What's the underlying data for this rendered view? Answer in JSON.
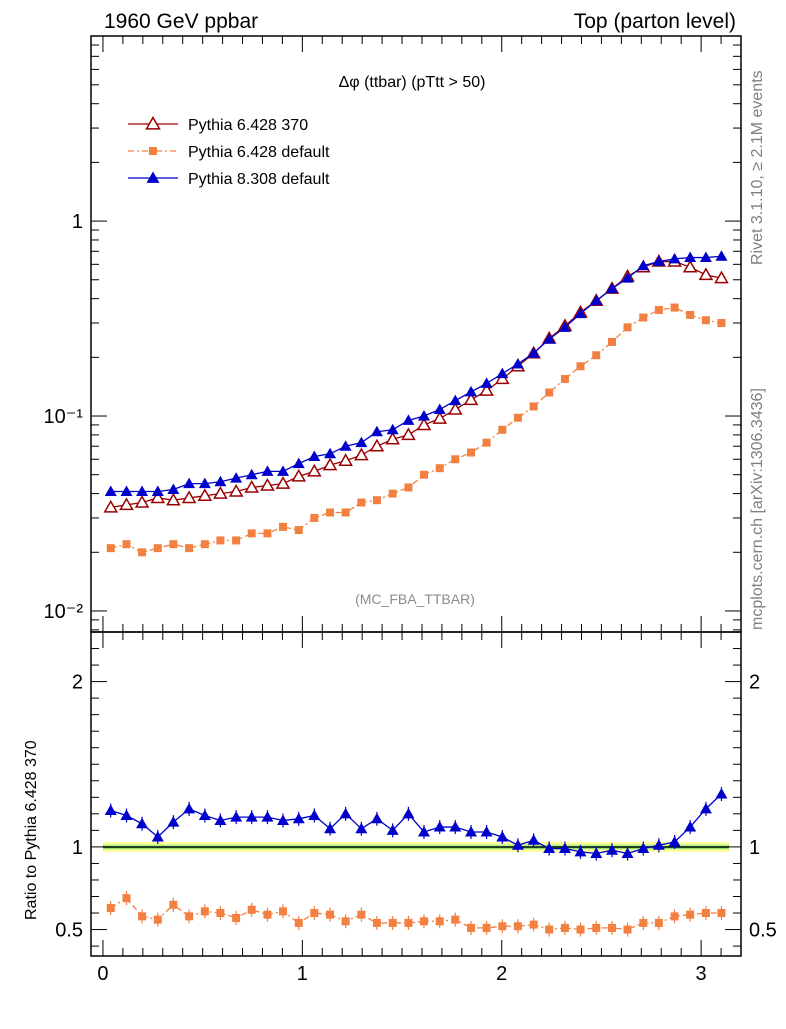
{
  "header": {
    "left": "1960 GeV ppbar",
    "right": "Top (parton level)"
  },
  "side": {
    "rivet": "Rivet 3.1.10, ≥ 2.1M events",
    "mcplots": "mcplots.cern.ch [arXiv:1306.3436]"
  },
  "chart_data": [
    {
      "type": "line",
      "title": "Δφ (ttbar) (pTtt > 50)",
      "analysis": "(MC_FBA_TTBAR)",
      "yscale": "log",
      "xlim": [
        -0.06,
        3.2
      ],
      "ylim": [
        0.0078,
        8.9
      ],
      "y_tick_labels": [
        "10⁻²",
        "10⁻¹",
        "1"
      ],
      "legend_position": "top-left",
      "x": [
        0.039,
        0.118,
        0.196,
        0.275,
        0.353,
        0.432,
        0.511,
        0.589,
        0.668,
        0.746,
        0.825,
        0.903,
        0.982,
        1.06,
        1.139,
        1.217,
        1.296,
        1.374,
        1.453,
        1.532,
        1.61,
        1.689,
        1.767,
        1.846,
        1.924,
        2.003,
        2.081,
        2.16,
        2.238,
        2.317,
        2.395,
        2.474,
        2.553,
        2.631,
        2.71,
        2.788,
        2.867,
        2.945,
        3.024,
        3.102
      ],
      "series": [
        {
          "name": "Pythia 6.428 370",
          "color": "#990000",
          "marker": "open-triangle",
          "values": [
            0.034,
            0.035,
            0.036,
            0.038,
            0.037,
            0.038,
            0.039,
            0.04,
            0.041,
            0.043,
            0.044,
            0.045,
            0.049,
            0.052,
            0.056,
            0.059,
            0.063,
            0.07,
            0.076,
            0.08,
            0.09,
            0.097,
            0.108,
            0.121,
            0.135,
            0.155,
            0.18,
            0.21,
            0.25,
            0.29,
            0.34,
            0.39,
            0.45,
            0.52,
            0.58,
            0.62,
            0.62,
            0.58,
            0.53,
            0.51
          ]
        },
        {
          "name": "Pythia 6.428 default",
          "color": "#f28040",
          "marker": "square",
          "values": [
            0.021,
            0.022,
            0.02,
            0.021,
            0.022,
            0.021,
            0.022,
            0.023,
            0.023,
            0.025,
            0.025,
            0.027,
            0.026,
            0.03,
            0.032,
            0.032,
            0.036,
            0.037,
            0.04,
            0.043,
            0.05,
            0.054,
            0.06,
            0.065,
            0.073,
            0.085,
            0.098,
            0.112,
            0.132,
            0.155,
            0.18,
            0.205,
            0.24,
            0.285,
            0.32,
            0.35,
            0.36,
            0.33,
            0.31,
            0.3
          ]
        },
        {
          "name": "Pythia 8.308 default",
          "color": "#0000cc",
          "marker": "filled-triangle",
          "values": [
            0.041,
            0.041,
            0.041,
            0.041,
            0.042,
            0.045,
            0.045,
            0.046,
            0.048,
            0.05,
            0.052,
            0.052,
            0.057,
            0.062,
            0.064,
            0.07,
            0.073,
            0.083,
            0.085,
            0.095,
            0.1,
            0.108,
            0.12,
            0.133,
            0.147,
            0.165,
            0.185,
            0.21,
            0.248,
            0.285,
            0.335,
            0.39,
            0.45,
            0.51,
            0.59,
            0.62,
            0.64,
            0.65,
            0.65,
            0.66
          ]
        }
      ]
    },
    {
      "type": "line",
      "ylabel": "Ratio to Pythia 6.428 370",
      "xlim": [
        -0.06,
        3.2
      ],
      "ylim": [
        0.34,
        2.3
      ],
      "x_ticks": [
        0,
        1,
        2,
        3
      ],
      "y_ticks": [
        0.5,
        1,
        2
      ],
      "series": [
        {
          "name": "Pythia 6.428 default",
          "color": "#f28040",
          "marker": "square",
          "values": [
            0.63,
            0.69,
            0.58,
            0.56,
            0.65,
            0.58,
            0.61,
            0.6,
            0.57,
            0.62,
            0.59,
            0.61,
            0.54,
            0.6,
            0.59,
            0.55,
            0.59,
            0.54,
            0.54,
            0.54,
            0.55,
            0.55,
            0.56,
            0.51,
            0.51,
            0.52,
            0.52,
            0.53,
            0.5,
            0.51,
            0.5,
            0.51,
            0.51,
            0.5,
            0.54,
            0.54,
            0.58,
            0.59,
            0.6,
            0.6
          ]
        },
        {
          "name": "Pythia 8.308 default",
          "color": "#0000cc",
          "marker": "filled-triangle",
          "values": [
            1.22,
            1.19,
            1.14,
            1.06,
            1.15,
            1.23,
            1.19,
            1.16,
            1.18,
            1.18,
            1.18,
            1.16,
            1.17,
            1.19,
            1.11,
            1.2,
            1.11,
            1.17,
            1.1,
            1.2,
            1.09,
            1.12,
            1.12,
            1.09,
            1.09,
            1.06,
            1.01,
            1.04,
            0.99,
            0.99,
            0.97,
            0.96,
            0.98,
            0.96,
            0.99,
            1.01,
            1.03,
            1.12,
            1.23,
            1.32
          ]
        }
      ]
    }
  ]
}
